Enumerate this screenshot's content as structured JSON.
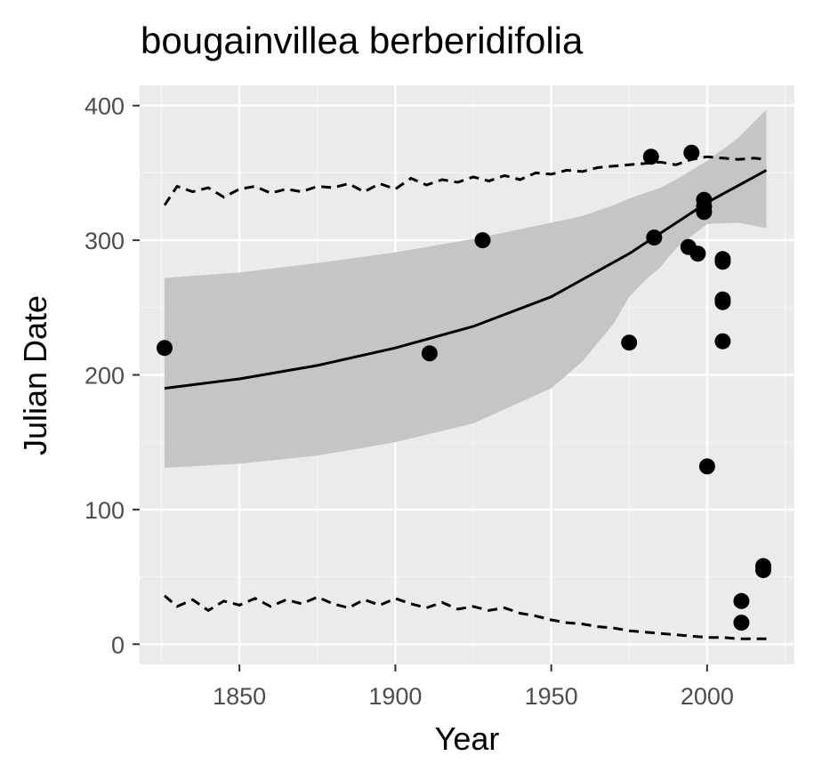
{
  "chart_data": {
    "type": "scatter",
    "title": "bougainvillea berberidifolia",
    "xlabel": "Year",
    "ylabel": "Julian Date",
    "xlim": [
      1818,
      2028
    ],
    "ylim": [
      -15,
      415
    ],
    "x_ticks": [
      1850,
      1900,
      1950,
      2000
    ],
    "x_tick_labels": [
      "1850",
      "1900",
      "1950",
      "2000"
    ],
    "y_ticks": [
      0,
      100,
      200,
      300,
      400
    ],
    "y_tick_labels": [
      "0",
      "100",
      "200",
      "300",
      "400"
    ],
    "grid": true,
    "colors": {
      "panel_background": "#ebebeb",
      "grid_major": "#ffffff",
      "grid_minor": "#f5f5f5",
      "ribbon": "#c5c5c5",
      "points": "#000000",
      "lines": "#000000",
      "tick_text": "#4d4d4d"
    },
    "points": [
      {
        "x": 1826,
        "y": 220
      },
      {
        "x": 1911,
        "y": 216
      },
      {
        "x": 1928,
        "y": 300
      },
      {
        "x": 1975,
        "y": 224
      },
      {
        "x": 1982,
        "y": 362
      },
      {
        "x": 1983,
        "y": 302
      },
      {
        "x": 1994,
        "y": 295
      },
      {
        "x": 1995,
        "y": 365
      },
      {
        "x": 1997,
        "y": 290
      },
      {
        "x": 1999,
        "y": 330
      },
      {
        "x": 1999,
        "y": 325
      },
      {
        "x": 1999,
        "y": 321
      },
      {
        "x": 2000,
        "y": 132
      },
      {
        "x": 2005,
        "y": 286
      },
      {
        "x": 2005,
        "y": 284
      },
      {
        "x": 2005,
        "y": 256
      },
      {
        "x": 2005,
        "y": 254
      },
      {
        "x": 2005,
        "y": 225
      },
      {
        "x": 2011,
        "y": 32
      },
      {
        "x": 2011,
        "y": 16
      },
      {
        "x": 2018,
        "y": 58
      },
      {
        "x": 2018,
        "y": 55
      }
    ],
    "fit_line": {
      "x": [
        1826,
        1850,
        1875,
        1900,
        1925,
        1950,
        1975,
        2000,
        2019
      ],
      "y": [
        190,
        197,
        207,
        220,
        236,
        258,
        290,
        328,
        352
      ]
    },
    "confidence_band": {
      "x": [
        1826,
        1850,
        1875,
        1900,
        1925,
        1950,
        1960,
        1970,
        1975,
        1980,
        1985,
        1990,
        2000,
        2010,
        2019
      ],
      "lower": [
        131,
        134,
        140,
        150,
        164,
        190,
        210,
        238,
        258,
        270,
        280,
        294,
        312,
        313,
        309
      ],
      "upper": [
        272,
        276,
        283,
        291,
        301,
        313,
        318,
        326,
        331,
        335,
        339,
        345,
        359,
        376,
        397
      ]
    },
    "upper_dashed_band": {
      "x": [
        1826,
        1830,
        1835,
        1840,
        1845,
        1850,
        1855,
        1860,
        1865,
        1870,
        1875,
        1880,
        1885,
        1890,
        1895,
        1900,
        1905,
        1910,
        1915,
        1920,
        1925,
        1930,
        1935,
        1940,
        1945,
        1950,
        1955,
        1960,
        1965,
        1970,
        1975,
        1980,
        1985,
        1990,
        1995,
        2000,
        2005,
        2010,
        2015,
        2019
      ],
      "y": [
        326,
        340,
        336,
        339,
        332,
        338,
        340,
        335,
        338,
        336,
        340,
        339,
        342,
        336,
        342,
        338,
        346,
        341,
        345,
        343,
        347,
        344,
        348,
        345,
        350,
        349,
        352,
        351,
        354,
        355,
        356,
        357,
        358,
        356,
        360,
        362,
        361,
        360,
        361,
        360
      ]
    },
    "lower_dashed_band": {
      "x": [
        1826,
        1830,
        1835,
        1840,
        1845,
        1850,
        1855,
        1860,
        1865,
        1870,
        1875,
        1880,
        1885,
        1890,
        1895,
        1900,
        1905,
        1910,
        1915,
        1920,
        1925,
        1930,
        1935,
        1940,
        1945,
        1950,
        1955,
        1960,
        1965,
        1970,
        1975,
        1980,
        1985,
        1990,
        1995,
        2000,
        2005,
        2010,
        2015,
        2019
      ],
      "y": [
        36,
        28,
        33,
        25,
        32,
        29,
        34,
        28,
        33,
        30,
        35,
        30,
        27,
        33,
        29,
        34,
        30,
        27,
        31,
        26,
        28,
        25,
        27,
        23,
        21,
        18,
        16,
        15,
        13,
        12,
        10,
        9,
        8,
        7,
        6,
        5,
        5,
        4,
        4,
        4
      ]
    }
  }
}
